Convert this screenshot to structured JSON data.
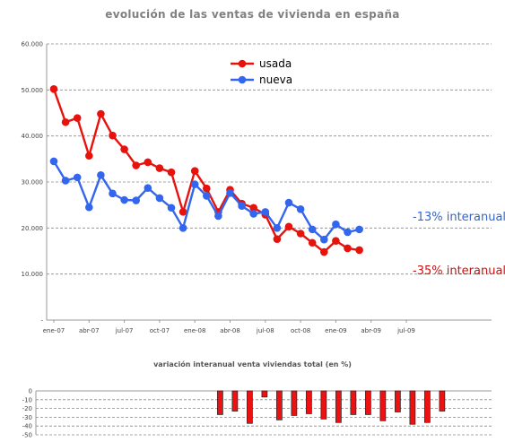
{
  "chart_data": [
    {
      "type": "line",
      "title": "evolución de las ventas de vivienda en españa",
      "x_tick_labels": [
        "ene-07",
        "abr-07",
        "jul-07",
        "oct-07",
        "ene-08",
        "abr-08",
        "jul-08",
        "oct-08",
        "ene-09",
        "abr-09",
        "jul-09"
      ],
      "y_tick_labels": [
        "-",
        "10.000",
        "20.000",
        "30.000",
        "40.000",
        "50.000",
        "60.000"
      ],
      "ylim": [
        0,
        60000
      ],
      "grid": true,
      "legend_position": "top-center",
      "series": [
        {
          "name": "usada",
          "color": "#e8120c",
          "values": [
            50200,
            43000,
            43900,
            35700,
            44800,
            40100,
            37100,
            33600,
            34300,
            33000,
            32100,
            23500,
            32400,
            28600,
            23500,
            28300,
            25300,
            24400,
            22900,
            17600,
            20300,
            18800,
            16800,
            14800,
            17200,
            15600,
            15200
          ]
        },
        {
          "name": "nueva",
          "color": "#3366ee",
          "values": [
            34500,
            30300,
            31000,
            24500,
            31500,
            27500,
            26100,
            26000,
            28700,
            26500,
            24400,
            20000,
            29500,
            27000,
            22600,
            27600,
            24800,
            23100,
            23500,
            20000,
            25500,
            24100,
            19700,
            17500,
            20800,
            19100,
            19700
          ]
        }
      ],
      "annotations": [
        {
          "text": "-13% interanual",
          "color": "#3366cc"
        },
        {
          "text": "-35% interanual",
          "color": "#cc1111"
        }
      ]
    },
    {
      "type": "bar",
      "title": "variación interanual venta viviendas total (en %)",
      "y_tick_labels": [
        "0",
        "-10",
        "-20",
        "-30",
        "-40",
        "-50"
      ],
      "ylim": [
        -50,
        0
      ],
      "color": "#ee1111",
      "values": [
        null,
        null,
        null,
        null,
        null,
        null,
        null,
        null,
        null,
        null,
        null,
        null,
        -27,
        -23,
        -37,
        -7,
        -33,
        -28,
        -26,
        -32,
        -36,
        -27,
        -27,
        -34,
        -24,
        -38,
        -36,
        -23
      ]
    }
  ]
}
